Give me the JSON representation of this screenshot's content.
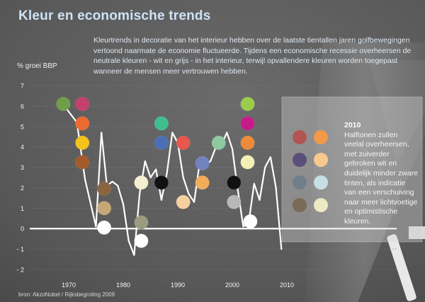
{
  "title": "Kleur en economische trends",
  "intro": "Kleurtrends in decoratie van het interieur hebben over de laatste tientallen jaren golfbewegingen vertoond naarmate de economie fluctueerde. Tijdens een economische recessie overheersen de neutrale kleuren - wit en grijs - in het interieur, terwijl opvallendere kleuren worden toegepast wanneer de mensen meer vertrouwen hebben.",
  "source": "bron: AkzoNobel / Rijksbegroting 2009",
  "panel": {
    "year": "2010",
    "text": "Halftonen zullen veelal overheersen, met zuiverder gebroken wit en duidelijk minder zware tinten, als indicatie van een verschuiving naar meer lichtvoetige en optimistische kleuren.",
    "swatches": [
      "#b15555",
      "#f2994a",
      "#5a4f7a",
      "#f8c98e",
      "#6f7f8c",
      "#c6dfe3",
      "#7a6a58",
      "#ece9c3"
    ]
  },
  "chart_data": {
    "type": "line",
    "ylabel": "% groei BBP",
    "xlim": [
      1965,
      2018
    ],
    "ylim": [
      -2,
      7
    ],
    "yticks": [
      "7",
      "6",
      "5",
      "4",
      "3",
      "2",
      "1",
      "0",
      "- 1",
      "- 2"
    ],
    "xticks": [
      "1970",
      "1980",
      "1990",
      "2000",
      "2010"
    ],
    "grid": true,
    "series": [
      {
        "x": [
          1969.5,
          1971.5,
          1973,
          1975,
          1976,
          1977,
          1978,
          1979,
          1980,
          1981,
          1982,
          1983,
          1984,
          1985,
          1986,
          1987,
          1988,
          1989,
          1990,
          1991,
          1992,
          1993,
          1994,
          1995,
          1996,
          1997,
          1998,
          1999,
          2000,
          2001,
          2002,
          2003,
          2004,
          2005,
          2006,
          2007,
          2008,
          2009
        ],
        "y": [
          5.9,
          5.2,
          2.4,
          0.1,
          4.7,
          2.1,
          2.3,
          2.1,
          1.2,
          -0.6,
          -1.3,
          1.7,
          3.3,
          2.5,
          2.9,
          1.4,
          2.7,
          4.7,
          4.2,
          2.5,
          1.7,
          1.3,
          3.2,
          3.1,
          3.3,
          4.0,
          4.1,
          4.7,
          3.9,
          1.9,
          0.1,
          0.3,
          2.2,
          1.4,
          3.0,
          3.5,
          2.0,
          -1.0
        ]
      }
    ],
    "dots": [
      {
        "x": 1969,
        "y": 6.1,
        "color": "#6ea04a"
      },
      {
        "x": 1972.5,
        "y": 6.1,
        "color": "#c4406f"
      },
      {
        "x": 1972.5,
        "y": 5.15,
        "color": "#ec6a30"
      },
      {
        "x": 1972.5,
        "y": 4.2,
        "color": "#f4c21b"
      },
      {
        "x": 1972.5,
        "y": 3.25,
        "color": "#a45a2b"
      },
      {
        "x": 1976.5,
        "y": 1.95,
        "color": "#8a6540"
      },
      {
        "x": 1976.5,
        "y": 1.0,
        "color": "#c7a776"
      },
      {
        "x": 1976.5,
        "y": 0.05,
        "color": "#ffffff"
      },
      {
        "x": 1983.3,
        "y": 2.25,
        "color": "#f4efcf"
      },
      {
        "x": 1983.3,
        "y": 0.3,
        "color": "#9b9b7f"
      },
      {
        "x": 1983.3,
        "y": -0.6,
        "color": "#ffffff"
      },
      {
        "x": 1987,
        "y": 5.15,
        "color": "#3fbf8f"
      },
      {
        "x": 1987,
        "y": 4.2,
        "color": "#4a6fb5"
      },
      {
        "x": 1987,
        "y": 2.25,
        "color": "#111111"
      },
      {
        "x": 1991,
        "y": 4.2,
        "color": "#e8574b"
      },
      {
        "x": 1991,
        "y": 1.3,
        "color": "#f8cfa0"
      },
      {
        "x": 1994.5,
        "y": 3.2,
        "color": "#7383c0"
      },
      {
        "x": 1994.5,
        "y": 2.25,
        "color": "#f2ad5a"
      },
      {
        "x": 1997.5,
        "y": 4.2,
        "color": "#8fc8a1"
      },
      {
        "x": 2000.3,
        "y": 2.25,
        "color": "#111111"
      },
      {
        "x": 2000.3,
        "y": 1.3,
        "color": "#b8b8b8"
      },
      {
        "x": 2002.8,
        "y": 6.1,
        "color": "#9ccc4a"
      },
      {
        "x": 2002.8,
        "y": 5.15,
        "color": "#c8198a"
      },
      {
        "x": 2002.8,
        "y": 4.2,
        "color": "#ee8b3a"
      },
      {
        "x": 2002.8,
        "y": 3.25,
        "color": "#f3efb4"
      },
      {
        "x": 2003.3,
        "y": 0.35,
        "color": "#ffffff"
      }
    ]
  }
}
